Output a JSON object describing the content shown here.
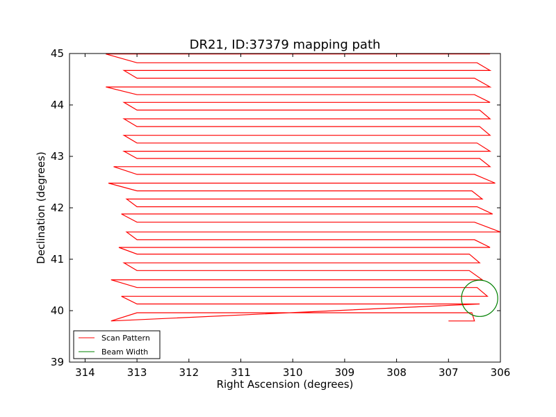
{
  "chart_data": {
    "type": "line",
    "title": "DR21, ID:37379 mapping path",
    "xlabel": "Right Ascension (degrees)",
    "ylabel": "Declination (degrees)",
    "xlim": [
      314.3,
      306.0
    ],
    "ylim": [
      39,
      45
    ],
    "x_ticks": [
      "314",
      "313",
      "312",
      "311",
      "310",
      "309",
      "308",
      "307",
      "306"
    ],
    "y_ticks": [
      "39",
      "40",
      "41",
      "42",
      "43",
      "44",
      "45"
    ],
    "grid": false,
    "legend_position": "lower-left",
    "series": [
      {
        "name": "Scan Pattern",
        "color": "#ff0000",
        "type": "line",
        "x": [
          307.0,
          306.5,
          306.55,
          313.0,
          313.5,
          306.4,
          306.6,
          313.0,
          313.3,
          306.25,
          306.45,
          313.0,
          313.5,
          306.35,
          306.6,
          313.0,
          313.25,
          306.4,
          306.6,
          313.0,
          313.35,
          306.2,
          306.5,
          313.0,
          313.2,
          306.0,
          306.5,
          313.0,
          313.3,
          306.15,
          306.45,
          313.0,
          313.2,
          306.35,
          306.55,
          313.0,
          313.55,
          306.1,
          306.5,
          313.0,
          313.45,
          306.2,
          306.4,
          313.0,
          313.25,
          306.2,
          306.45,
          313.0,
          313.25,
          306.2,
          306.4,
          313.0,
          313.25,
          306.2,
          306.4,
          313.0,
          313.25,
          306.2,
          306.5,
          313.0,
          313.6,
          306.2,
          306.5,
          313.0,
          313.25,
          306.2,
          306.45,
          313.0,
          313.6,
          306.2,
          306.45,
          313.0,
          313.25,
          306.2,
          306.55,
          313.0,
          313.3
        ],
        "y": [
          39.8,
          39.8,
          39.96,
          39.96,
          39.8,
          40.13,
          40.13,
          40.13,
          40.28,
          40.28,
          40.45,
          40.45,
          40.6,
          40.6,
          40.78,
          40.78,
          40.93,
          40.93,
          41.1,
          41.1,
          41.23,
          41.23,
          41.38,
          41.38,
          41.53,
          41.53,
          41.72,
          41.72,
          41.88,
          41.88,
          42.02,
          42.02,
          42.17,
          42.17,
          42.33,
          42.33,
          42.48,
          42.48,
          42.65,
          42.65,
          42.8,
          42.8,
          42.96,
          42.96,
          43.1,
          43.1,
          43.26,
          43.26,
          43.41,
          43.41,
          43.58,
          43.58,
          43.73,
          43.73,
          43.9,
          43.9,
          44.05,
          44.05,
          44.2,
          44.2,
          44.35,
          44.35,
          44.52,
          44.52,
          44.67,
          44.67,
          44.82,
          44.82,
          44.99,
          44.99,
          45.0,
          45.0,
          45.0,
          45.0,
          45.0,
          45.0,
          45.0
        ]
      },
      {
        "name": "Beam Width",
        "color": "#008000",
        "type": "circle",
        "center": [
          306.4,
          40.24
        ],
        "radius_deg": 0.36
      }
    ]
  }
}
